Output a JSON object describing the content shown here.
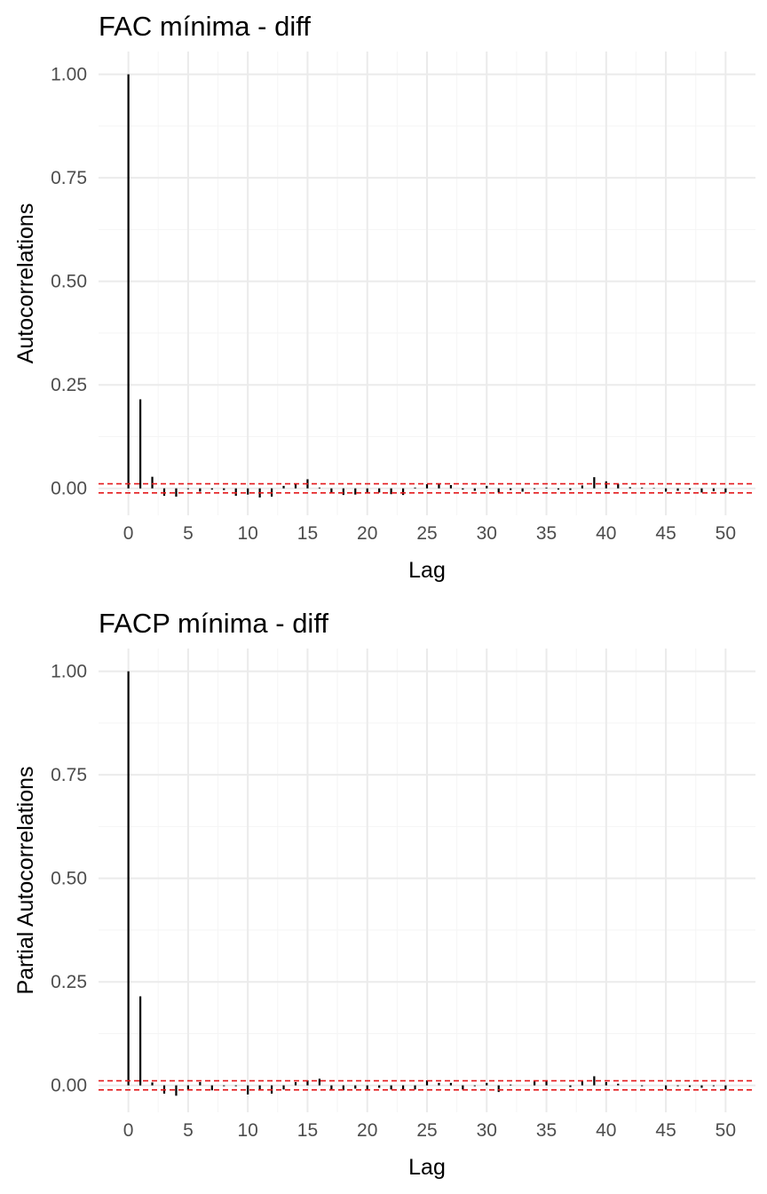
{
  "colors": {
    "background": "#ffffff",
    "grid_major": "#ebebeb",
    "grid_minor": "#f5f5f5",
    "bars": "#000000",
    "ci_lines": "#e41a1c"
  },
  "chart_data": [
    {
      "type": "bar",
      "title": "FAC mínima - diff",
      "xlabel": "Lag",
      "ylabel": "Autocorrelations",
      "xlim": [
        -2.5,
        52.5
      ],
      "ylim": [
        -0.065,
        1.055
      ],
      "x_ticks": [
        0,
        5,
        10,
        15,
        20,
        25,
        30,
        35,
        40,
        45,
        50
      ],
      "x_tick_labels": [
        "0",
        "5",
        "10",
        "15",
        "20",
        "25",
        "30",
        "35",
        "40",
        "45",
        "50"
      ],
      "y_ticks": [
        0,
        0.25,
        0.5,
        0.75,
        1.0
      ],
      "y_tick_labels": [
        "0.00",
        "0.25",
        "0.50",
        "0.75",
        "1.00"
      ],
      "confidence_bounds": [
        0.011,
        -0.011
      ],
      "grid": true,
      "x": [
        0,
        1,
        2,
        3,
        4,
        5,
        6,
        7,
        8,
        9,
        10,
        11,
        12,
        13,
        14,
        15,
        16,
        17,
        18,
        19,
        20,
        21,
        22,
        23,
        24,
        25,
        26,
        27,
        28,
        29,
        30,
        31,
        32,
        33,
        34,
        35,
        36,
        37,
        38,
        39,
        40,
        41,
        42,
        43,
        44,
        45,
        46,
        47,
        48,
        49,
        50
      ],
      "values": [
        1.0,
        0.215,
        0.028,
        -0.018,
        -0.02,
        -0.002,
        -0.008,
        -0.003,
        -0.004,
        -0.018,
        -0.015,
        -0.022,
        -0.02,
        0.006,
        0.012,
        0.022,
        0.002,
        -0.012,
        -0.016,
        -0.015,
        -0.012,
        -0.01,
        -0.014,
        -0.016,
        0.002,
        0.01,
        0.01,
        0.008,
        -0.003,
        -0.006,
        0.006,
        -0.01,
        -0.004,
        -0.008,
        -0.002,
        0.002,
        -0.003,
        -0.004,
        0.007,
        0.027,
        0.017,
        0.011,
        0.003,
        0.002,
        0.001,
        -0.008,
        -0.006,
        -0.003,
        -0.01,
        -0.007,
        -0.01
      ]
    },
    {
      "type": "bar",
      "title": "FACP mínima - diff",
      "xlabel": "Lag",
      "ylabel": "Partial Autocorrelations",
      "xlim": [
        -2.5,
        52.5
      ],
      "ylim": [
        -0.065,
        1.055
      ],
      "x_ticks": [
        0,
        5,
        10,
        15,
        20,
        25,
        30,
        35,
        40,
        45,
        50
      ],
      "x_tick_labels": [
        "0",
        "5",
        "10",
        "15",
        "20",
        "25",
        "30",
        "35",
        "40",
        "45",
        "50"
      ],
      "y_ticks": [
        0,
        0.25,
        0.5,
        0.75,
        1.0
      ],
      "y_tick_labels": [
        "0.00",
        "0.25",
        "0.50",
        "0.75",
        "1.00"
      ],
      "confidence_bounds": [
        0.011,
        -0.011
      ],
      "grid": true,
      "x": [
        0,
        1,
        2,
        3,
        4,
        5,
        6,
        7,
        8,
        9,
        10,
        11,
        12,
        13,
        14,
        15,
        16,
        17,
        18,
        19,
        20,
        21,
        22,
        23,
        24,
        25,
        26,
        27,
        28,
        29,
        30,
        31,
        32,
        33,
        34,
        35,
        36,
        37,
        38,
        39,
        40,
        41,
        42,
        43,
        44,
        45,
        46,
        47,
        48,
        49,
        50
      ],
      "values": [
        1.0,
        0.215,
        0.007,
        -0.02,
        -0.025,
        -0.012,
        0.008,
        -0.012,
        -0.002,
        -0.002,
        -0.022,
        -0.01,
        -0.02,
        -0.01,
        0.008,
        0.012,
        0.016,
        -0.012,
        -0.012,
        -0.008,
        -0.012,
        -0.006,
        -0.01,
        -0.012,
        -0.01,
        0.012,
        0.006,
        0.006,
        -0.01,
        -0.002,
        0.006,
        -0.016,
        0.002,
        0.0,
        0.01,
        0.01,
        0.0,
        -0.004,
        0.012,
        0.022,
        0.008,
        0.004,
        0.0,
        -0.002,
        0.0,
        -0.01,
        -0.002,
        -0.004,
        -0.006,
        -0.002,
        -0.01
      ]
    }
  ]
}
